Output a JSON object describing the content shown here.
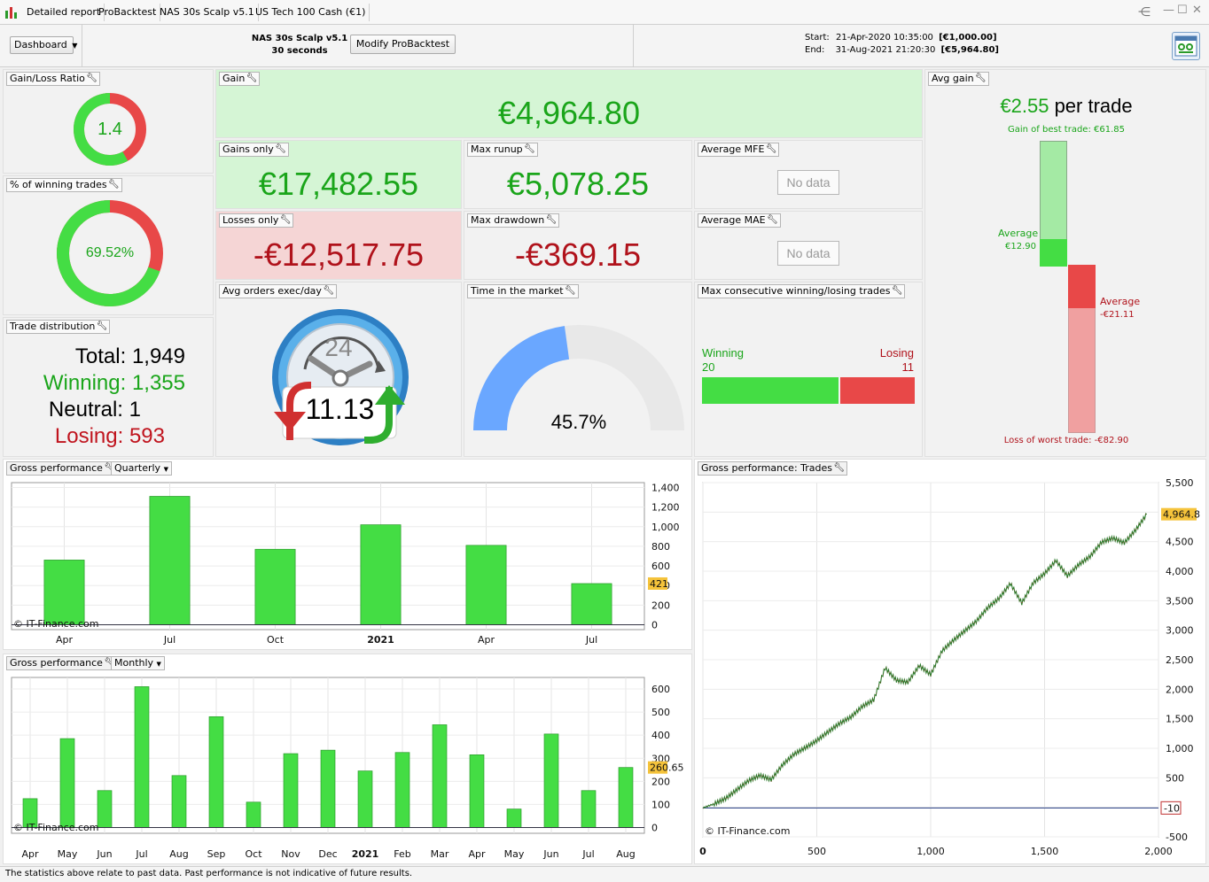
{
  "tabs": [
    "Detailed report",
    "ProBacktest",
    "NAS 30s Scalp v5.1",
    "US Tech 100 Cash (€1)"
  ],
  "header": {
    "dashboard_label": "Dashboard",
    "strategy_name": "NAS 30s Scalp v5.1",
    "timeframe": "30 seconds",
    "modify_button": "Modify ProBacktest",
    "start_label": "Start:",
    "start_date": "21-Apr-2020 10:35:00",
    "start_value": "[€1,000.00]",
    "end_label": "End:",
    "end_date": "31-Aug-2021 21:20:30",
    "end_value": "[€5,964.80]"
  },
  "panels": {
    "gain_loss_ratio": {
      "title": "Gain/Loss Ratio",
      "value": "1.4",
      "ratio_fraction": 0.583
    },
    "winning_pct": {
      "title": "% of winning trades",
      "value": "69.52%",
      "fraction": 0.6952
    },
    "trade_distribution": {
      "title": "Trade distribution",
      "total_label": "Total:",
      "total": "1,949",
      "winning_label": "Winning:",
      "winning": "1,355",
      "neutral_label": "Neutral:",
      "neutral": "1",
      "losing_label": "Losing:",
      "losing": "593"
    },
    "gain": {
      "title": "Gain",
      "value": "€4,964.80"
    },
    "gains_only": {
      "title": "Gains only",
      "value": "€17,482.55"
    },
    "losses_only": {
      "title": "Losses only",
      "value": "-€12,517.75"
    },
    "max_runup": {
      "title": "Max runup",
      "value": "€5,078.25"
    },
    "max_drawdown": {
      "title": "Max drawdown",
      "value": "-€369.15"
    },
    "avg_mfe": {
      "title": "Average MFE",
      "value": "No data"
    },
    "avg_mae": {
      "title": "Average MAE",
      "value": "No data"
    },
    "avg_orders": {
      "title": "Avg orders exec/day",
      "value": "11.13",
      "clock_label": "24"
    },
    "time_in_market": {
      "title": "Time in the market",
      "value": "45.7%",
      "fraction": 0.457
    },
    "max_consecutive": {
      "title": "Max consecutive winning/losing trades",
      "winning_label": "Winning",
      "winning_value": "20",
      "losing_label": "Losing",
      "losing_value": "11"
    },
    "avg_gain": {
      "title": "Avg gain",
      "value": "€2.55",
      "unit": "per trade",
      "best_trade": "Gain of best trade: €61.85",
      "avg_win_label": "Average",
      "avg_win_value": "€12.90",
      "avg_loss_label": "Average",
      "avg_loss_value": "-€21.11",
      "worst_trade": "Loss of worst trade: -€82.90"
    },
    "gross_quarterly": {
      "title": "Gross performance",
      "dropdown": "Quarterly"
    },
    "gross_monthly": {
      "title": "Gross performance",
      "dropdown": "Monthly"
    },
    "gross_trades": {
      "title": "Gross performance: Trades"
    }
  },
  "chart_data": [
    {
      "type": "bar",
      "title": "Gross performance",
      "categories": [
        "Apr",
        "Jul",
        "Oct",
        "2021",
        "Apr",
        "Jul"
      ],
      "values": [
        660,
        1310,
        770,
        1020,
        810,
        420
      ],
      "ylim": [
        -50,
        1450
      ],
      "yticks": [
        "1,400",
        "1,200",
        "1,000",
        "800",
        "600",
        "400",
        "200",
        "0"
      ],
      "ytick_values": [
        1400,
        1200,
        1000,
        800,
        600,
        400,
        200,
        0
      ],
      "last_value_marker": "421",
      "watermark": "© IT-Finance.com",
      "color": "#44dd44"
    },
    {
      "type": "bar",
      "title": "Gross performance",
      "categories": [
        "Apr",
        "May",
        "Jun",
        "Jul",
        "Aug",
        "Sep",
        "Oct",
        "Nov",
        "Dec",
        "2021",
        "Feb",
        "Mar",
        "Apr",
        "May",
        "Jun",
        "Jul",
        "Aug"
      ],
      "values": [
        125,
        385,
        160,
        610,
        225,
        480,
        110,
        320,
        335,
        245,
        325,
        445,
        315,
        80,
        405,
        160,
        260
      ],
      "ylim": [
        -25,
        650
      ],
      "yticks": [
        "600",
        "500",
        "400",
        "300",
        "200",
        "100",
        "0"
      ],
      "ytick_values": [
        600,
        500,
        400,
        300,
        200,
        100,
        0
      ],
      "last_value_marker": "260.65",
      "watermark": "© IT-Finance.com",
      "color": "#44dd44"
    },
    {
      "type": "line",
      "title": "Gross performance: Trades",
      "x": [
        0,
        50,
        100,
        150,
        200,
        250,
        300,
        350,
        400,
        450,
        500,
        550,
        600,
        650,
        700,
        750,
        800,
        850,
        900,
        950,
        1000,
        1050,
        1100,
        1150,
        1200,
        1250,
        1300,
        1350,
        1400,
        1450,
        1500,
        1550,
        1600,
        1650,
        1700,
        1750,
        1800,
        1850,
        1900,
        1949
      ],
      "y": [
        -10,
        60,
        150,
        300,
        450,
        540,
        470,
        720,
        900,
        1010,
        1130,
        1280,
        1420,
        1530,
        1710,
        1820,
        2360,
        2150,
        2120,
        2400,
        2250,
        2650,
        2830,
        2990,
        3150,
        3380,
        3540,
        3790,
        3460,
        3800,
        3960,
        4180,
        3920,
        4110,
        4250,
        4490,
        4560,
        4480,
        4700,
        4964.8
      ],
      "xlim": [
        0,
        2000
      ],
      "ylim": [
        -500,
        5500
      ],
      "xticks": [
        "0",
        "500",
        "1,000",
        "1,500",
        "2,000"
      ],
      "xtick_values": [
        0,
        500,
        1000,
        1500,
        2000
      ],
      "yticks": [
        "5,500",
        "5,000",
        "4,500",
        "4,000",
        "3,500",
        "3,000",
        "2,500",
        "2,000",
        "1,500",
        "1,000",
        "500",
        "0",
        "-500"
      ],
      "ytick_values": [
        5500,
        5000,
        4500,
        4000,
        3500,
        3000,
        2500,
        2000,
        1500,
        1000,
        500,
        0,
        -500
      ],
      "last_value_marker": "4,964.8",
      "baseline_marker": "-10",
      "watermark": "© IT-Finance.com"
    }
  ],
  "footer": "The statistics above relate to past data. Past performance is not indicative of future results.",
  "colors": {
    "gain_green": "#1aa51a",
    "loss_red": "#b0121b",
    "bar_green": "#44dd44",
    "donut_red": "#e84848",
    "gauge_blue": "#6aa7ff"
  }
}
